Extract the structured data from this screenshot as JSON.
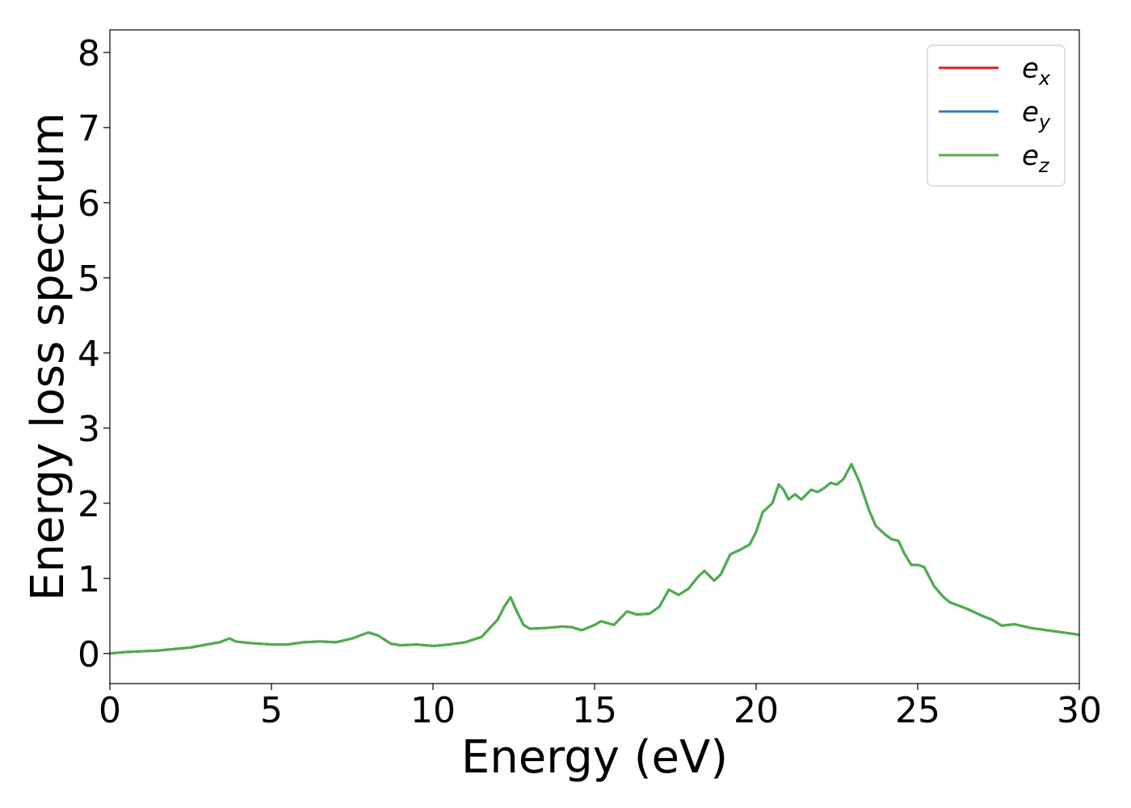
{
  "chart_data": {
    "type": "line",
    "title": "",
    "xlabel": "Energy (eV)",
    "ylabel": "Energy loss spectrum",
    "xlim": [
      0,
      30
    ],
    "ylim": [
      -0.4,
      8.3
    ],
    "xticks": [
      0,
      5,
      10,
      15,
      20,
      25,
      30
    ],
    "yticks": [
      0,
      1,
      2,
      3,
      4,
      5,
      6,
      7,
      8
    ],
    "grid": false,
    "legend_position": "top-right",
    "series": [
      {
        "name": "e_x",
        "label_base": "e",
        "label_sub": "x",
        "color": "#e41a1c",
        "points": [
          [
            0,
            0.0
          ],
          [
            0.5,
            0.02
          ],
          [
            1.0,
            0.03
          ],
          [
            1.5,
            0.04
          ],
          [
            2.0,
            0.06
          ],
          [
            2.5,
            0.08
          ],
          [
            3.0,
            0.12
          ],
          [
            3.4,
            0.15
          ],
          [
            3.7,
            0.2
          ],
          [
            3.9,
            0.16
          ],
          [
            4.3,
            0.14
          ],
          [
            5.0,
            0.12
          ],
          [
            5.5,
            0.12
          ],
          [
            6.0,
            0.15
          ],
          [
            6.5,
            0.16
          ],
          [
            7.0,
            0.15
          ],
          [
            7.5,
            0.2
          ],
          [
            8.0,
            0.28
          ],
          [
            8.3,
            0.24
          ],
          [
            8.7,
            0.13
          ],
          [
            9.0,
            0.11
          ],
          [
            9.5,
            0.12
          ],
          [
            10.0,
            0.1
          ],
          [
            10.5,
            0.12
          ],
          [
            11.0,
            0.15
          ],
          [
            11.5,
            0.22
          ],
          [
            12.0,
            0.45
          ],
          [
            12.2,
            0.62
          ],
          [
            12.4,
            0.75
          ],
          [
            12.55,
            0.6
          ],
          [
            12.8,
            0.38
          ],
          [
            13.0,
            0.33
          ],
          [
            13.5,
            0.34
          ],
          [
            14.0,
            0.36
          ],
          [
            14.3,
            0.35
          ],
          [
            14.6,
            0.31
          ],
          [
            15.0,
            0.38
          ],
          [
            15.2,
            0.43
          ],
          [
            15.6,
            0.38
          ],
          [
            16.0,
            0.56
          ],
          [
            16.3,
            0.52
          ],
          [
            16.7,
            0.53
          ],
          [
            17.0,
            0.62
          ],
          [
            17.3,
            0.85
          ],
          [
            17.6,
            0.78
          ],
          [
            17.9,
            0.86
          ],
          [
            18.2,
            1.02
          ],
          [
            18.4,
            1.1
          ],
          [
            18.7,
            0.97
          ],
          [
            18.9,
            1.05
          ],
          [
            19.2,
            1.32
          ],
          [
            19.5,
            1.38
          ],
          [
            19.8,
            1.45
          ],
          [
            20.0,
            1.62
          ],
          [
            20.2,
            1.88
          ],
          [
            20.5,
            2.0
          ],
          [
            20.7,
            2.25
          ],
          [
            20.85,
            2.18
          ],
          [
            21.0,
            2.05
          ],
          [
            21.2,
            2.12
          ],
          [
            21.4,
            2.05
          ],
          [
            21.7,
            2.18
          ],
          [
            21.9,
            2.15
          ],
          [
            22.1,
            2.2
          ],
          [
            22.3,
            2.27
          ],
          [
            22.5,
            2.25
          ],
          [
            22.7,
            2.32
          ],
          [
            22.95,
            2.52
          ],
          [
            23.2,
            2.28
          ],
          [
            23.5,
            1.9
          ],
          [
            23.7,
            1.7
          ],
          [
            24.0,
            1.58
          ],
          [
            24.2,
            1.52
          ],
          [
            24.4,
            1.5
          ],
          [
            24.6,
            1.32
          ],
          [
            24.8,
            1.18
          ],
          [
            25.0,
            1.18
          ],
          [
            25.2,
            1.15
          ],
          [
            25.5,
            0.9
          ],
          [
            25.8,
            0.75
          ],
          [
            26.0,
            0.68
          ],
          [
            26.5,
            0.6
          ],
          [
            27.0,
            0.5
          ],
          [
            27.3,
            0.45
          ],
          [
            27.6,
            0.37
          ],
          [
            28.0,
            0.39
          ],
          [
            28.5,
            0.34
          ],
          [
            29.0,
            0.31
          ],
          [
            29.5,
            0.28
          ],
          [
            30.0,
            0.25
          ]
        ]
      },
      {
        "name": "e_y",
        "label_base": "e",
        "label_sub": "y",
        "color": "#377eb8",
        "points": [
          [
            0,
            0.0
          ],
          [
            0.5,
            0.02
          ],
          [
            1.0,
            0.03
          ],
          [
            1.5,
            0.04
          ],
          [
            2.0,
            0.06
          ],
          [
            2.5,
            0.08
          ],
          [
            3.0,
            0.12
          ],
          [
            3.4,
            0.15
          ],
          [
            3.7,
            0.2
          ],
          [
            3.9,
            0.16
          ],
          [
            4.3,
            0.14
          ],
          [
            5.0,
            0.12
          ],
          [
            5.5,
            0.12
          ],
          [
            6.0,
            0.15
          ],
          [
            6.5,
            0.16
          ],
          [
            7.0,
            0.15
          ],
          [
            7.5,
            0.2
          ],
          [
            8.0,
            0.28
          ],
          [
            8.3,
            0.24
          ],
          [
            8.7,
            0.13
          ],
          [
            9.0,
            0.11
          ],
          [
            9.5,
            0.12
          ],
          [
            10.0,
            0.1
          ],
          [
            10.5,
            0.12
          ],
          [
            11.0,
            0.15
          ],
          [
            11.5,
            0.22
          ],
          [
            12.0,
            0.45
          ],
          [
            12.2,
            0.62
          ],
          [
            12.4,
            0.75
          ],
          [
            12.55,
            0.6
          ],
          [
            12.8,
            0.38
          ],
          [
            13.0,
            0.33
          ],
          [
            13.5,
            0.34
          ],
          [
            14.0,
            0.36
          ],
          [
            14.3,
            0.35
          ],
          [
            14.6,
            0.31
          ],
          [
            15.0,
            0.38
          ],
          [
            15.2,
            0.43
          ],
          [
            15.6,
            0.38
          ],
          [
            16.0,
            0.56
          ],
          [
            16.3,
            0.52
          ],
          [
            16.7,
            0.53
          ],
          [
            17.0,
            0.62
          ],
          [
            17.3,
            0.85
          ],
          [
            17.6,
            0.78
          ],
          [
            17.9,
            0.86
          ],
          [
            18.2,
            1.02
          ],
          [
            18.4,
            1.1
          ],
          [
            18.7,
            0.97
          ],
          [
            18.9,
            1.05
          ],
          [
            19.2,
            1.32
          ],
          [
            19.5,
            1.38
          ],
          [
            19.8,
            1.45
          ],
          [
            20.0,
            1.62
          ],
          [
            20.2,
            1.88
          ],
          [
            20.5,
            2.0
          ],
          [
            20.7,
            2.25
          ],
          [
            20.85,
            2.18
          ],
          [
            21.0,
            2.05
          ],
          [
            21.2,
            2.12
          ],
          [
            21.4,
            2.05
          ],
          [
            21.7,
            2.18
          ],
          [
            21.9,
            2.15
          ],
          [
            22.1,
            2.2
          ],
          [
            22.3,
            2.27
          ],
          [
            22.5,
            2.25
          ],
          [
            22.7,
            2.32
          ],
          [
            22.95,
            2.52
          ],
          [
            23.2,
            2.28
          ],
          [
            23.5,
            1.9
          ],
          [
            23.7,
            1.7
          ],
          [
            24.0,
            1.58
          ],
          [
            24.2,
            1.52
          ],
          [
            24.4,
            1.5
          ],
          [
            24.6,
            1.32
          ],
          [
            24.8,
            1.18
          ],
          [
            25.0,
            1.18
          ],
          [
            25.2,
            1.15
          ],
          [
            25.5,
            0.9
          ],
          [
            25.8,
            0.75
          ],
          [
            26.0,
            0.68
          ],
          [
            26.5,
            0.6
          ],
          [
            27.0,
            0.5
          ],
          [
            27.3,
            0.45
          ],
          [
            27.6,
            0.37
          ],
          [
            28.0,
            0.39
          ],
          [
            28.5,
            0.34
          ],
          [
            29.0,
            0.31
          ],
          [
            29.5,
            0.28
          ],
          [
            30.0,
            0.25
          ]
        ]
      },
      {
        "name": "e_z",
        "label_base": "e",
        "label_sub": "z",
        "color": "#4daf4a",
        "points": [
          [
            0,
            0.0
          ],
          [
            0.5,
            0.02
          ],
          [
            1.0,
            0.03
          ],
          [
            1.5,
            0.04
          ],
          [
            2.0,
            0.06
          ],
          [
            2.5,
            0.08
          ],
          [
            3.0,
            0.12
          ],
          [
            3.4,
            0.15
          ],
          [
            3.7,
            0.2
          ],
          [
            3.9,
            0.16
          ],
          [
            4.3,
            0.14
          ],
          [
            5.0,
            0.12
          ],
          [
            5.5,
            0.12
          ],
          [
            6.0,
            0.15
          ],
          [
            6.5,
            0.16
          ],
          [
            7.0,
            0.15
          ],
          [
            7.5,
            0.2
          ],
          [
            8.0,
            0.28
          ],
          [
            8.3,
            0.24
          ],
          [
            8.7,
            0.13
          ],
          [
            9.0,
            0.11
          ],
          [
            9.5,
            0.12
          ],
          [
            10.0,
            0.1
          ],
          [
            10.5,
            0.12
          ],
          [
            11.0,
            0.15
          ],
          [
            11.5,
            0.22
          ],
          [
            12.0,
            0.45
          ],
          [
            12.2,
            0.62
          ],
          [
            12.4,
            0.75
          ],
          [
            12.55,
            0.6
          ],
          [
            12.8,
            0.38
          ],
          [
            13.0,
            0.33
          ],
          [
            13.5,
            0.34
          ],
          [
            14.0,
            0.36
          ],
          [
            14.3,
            0.35
          ],
          [
            14.6,
            0.31
          ],
          [
            15.0,
            0.38
          ],
          [
            15.2,
            0.43
          ],
          [
            15.6,
            0.38
          ],
          [
            16.0,
            0.56
          ],
          [
            16.3,
            0.52
          ],
          [
            16.7,
            0.53
          ],
          [
            17.0,
            0.62
          ],
          [
            17.3,
            0.85
          ],
          [
            17.6,
            0.78
          ],
          [
            17.9,
            0.86
          ],
          [
            18.2,
            1.02
          ],
          [
            18.4,
            1.1
          ],
          [
            18.7,
            0.97
          ],
          [
            18.9,
            1.05
          ],
          [
            19.2,
            1.32
          ],
          [
            19.5,
            1.38
          ],
          [
            19.8,
            1.45
          ],
          [
            20.0,
            1.62
          ],
          [
            20.2,
            1.88
          ],
          [
            20.5,
            2.0
          ],
          [
            20.7,
            2.25
          ],
          [
            20.85,
            2.18
          ],
          [
            21.0,
            2.05
          ],
          [
            21.2,
            2.12
          ],
          [
            21.4,
            2.05
          ],
          [
            21.7,
            2.18
          ],
          [
            21.9,
            2.15
          ],
          [
            22.1,
            2.2
          ],
          [
            22.3,
            2.27
          ],
          [
            22.5,
            2.25
          ],
          [
            22.7,
            2.32
          ],
          [
            22.95,
            2.52
          ],
          [
            23.2,
            2.28
          ],
          [
            23.5,
            1.9
          ],
          [
            23.7,
            1.7
          ],
          [
            24.0,
            1.58
          ],
          [
            24.2,
            1.52
          ],
          [
            24.4,
            1.5
          ],
          [
            24.6,
            1.32
          ],
          [
            24.8,
            1.18
          ],
          [
            25.0,
            1.18
          ],
          [
            25.2,
            1.15
          ],
          [
            25.5,
            0.9
          ],
          [
            25.8,
            0.75
          ],
          [
            26.0,
            0.68
          ],
          [
            26.5,
            0.6
          ],
          [
            27.0,
            0.5
          ],
          [
            27.3,
            0.45
          ],
          [
            27.6,
            0.37
          ],
          [
            28.0,
            0.39
          ],
          [
            28.5,
            0.34
          ],
          [
            29.0,
            0.31
          ],
          [
            29.5,
            0.28
          ],
          [
            30.0,
            0.25
          ]
        ]
      }
    ]
  }
}
